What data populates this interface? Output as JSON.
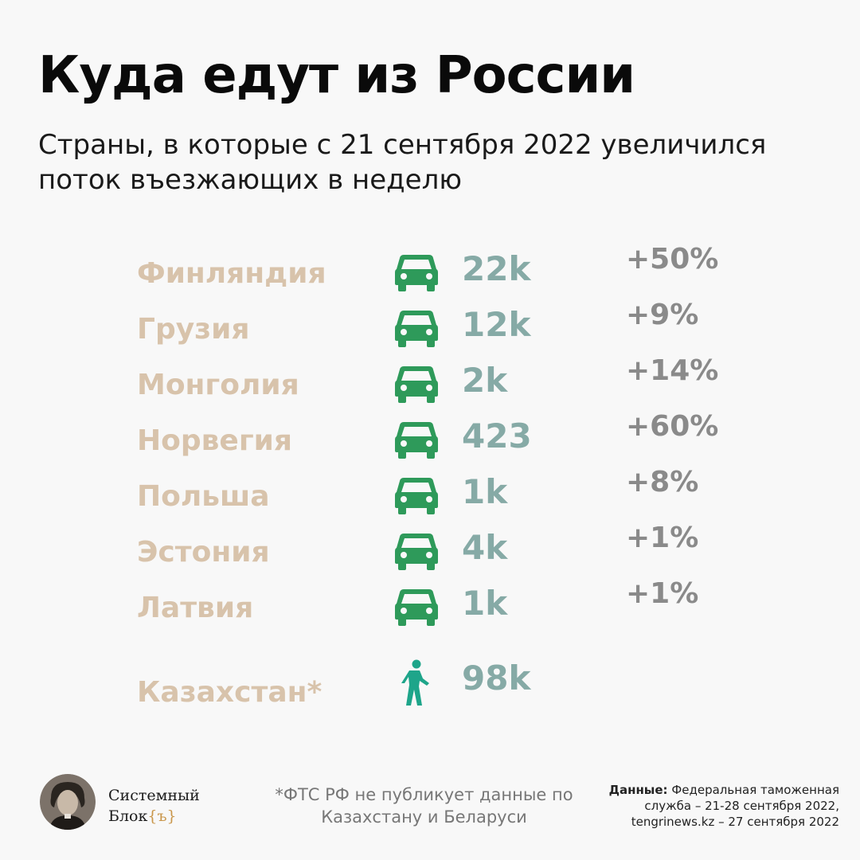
{
  "title": "Куда едут из России",
  "subtitle": "Страны, в которые с 21 сентября 2022 увеличился поток въезжающих в неделю",
  "colors": {
    "country": "#d8c3ab",
    "value": "#86aaa6",
    "percent": "#8a8a8a",
    "car_icon": "#2e9a5a",
    "walk_icon": "#1ea58a"
  },
  "chart_data": {
    "type": "table",
    "columns": [
      "country",
      "mode",
      "weekly_entries",
      "change"
    ],
    "rows": [
      {
        "country": "Финляндия",
        "mode": "car-icon",
        "value_label": "22k",
        "value": 22000,
        "change": "+50%"
      },
      {
        "country": "Грузия",
        "mode": "car-icon",
        "value_label": "12k",
        "value": 12000,
        "change": "+9%"
      },
      {
        "country": "Монголия",
        "mode": "car-icon",
        "value_label": "2k",
        "value": 2000,
        "change": "+14%"
      },
      {
        "country": "Норвегия",
        "mode": "car-icon",
        "value_label": "423",
        "value": 423,
        "change": "+60%"
      },
      {
        "country": "Польша",
        "mode": "car-icon",
        "value_label": "1k",
        "value": 1000,
        "change": "+8%"
      },
      {
        "country": "Эстония",
        "mode": "car-icon",
        "value_label": "4k",
        "value": 4000,
        "change": "+1%"
      },
      {
        "country": "Латвия",
        "mode": "car-icon",
        "value_label": "1k",
        "value": 1000,
        "change": "+1%"
      },
      {
        "country": "Казахстан*",
        "mode": "walking-person-icon",
        "value_label": "98k",
        "value": 98000,
        "change": ""
      }
    ]
  },
  "footer": {
    "logo_line1": "Системный",
    "logo_line2": "Блок",
    "logo_brace": "{ъ}",
    "footnote": "*ФТС РФ не публикует данные по Казахстану и Беларуси",
    "source_label": "Данные:",
    "source_text": "Федеральная таможенная служба – 21-28 сентября 2022, tengrinews.kz – 27 сентября 2022"
  }
}
